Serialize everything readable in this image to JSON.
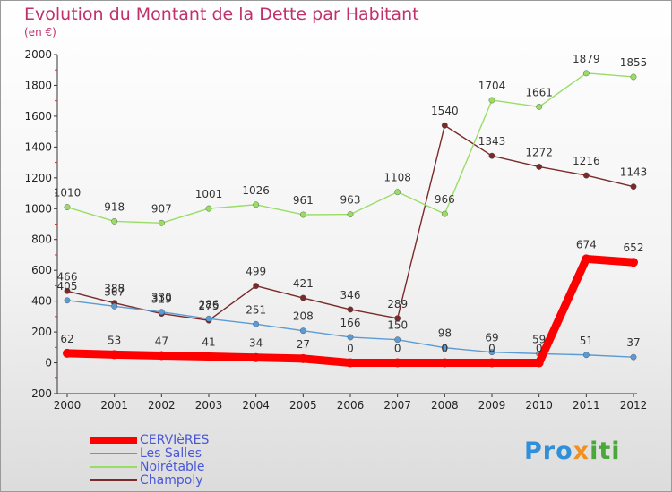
{
  "chart_data": {
    "type": "line",
    "title": "Evolution du Montant de la Dette par Habitant",
    "subtitle": "(en €)",
    "x": [
      "2000",
      "2001",
      "2002",
      "2003",
      "2004",
      "2005",
      "2006",
      "2007",
      "2008",
      "2009",
      "2010",
      "2011",
      "2012"
    ],
    "ylim": [
      -200,
      2000
    ],
    "yticks": [
      -200,
      0,
      200,
      400,
      600,
      800,
      1000,
      1200,
      1400,
      1600,
      1800,
      2000
    ],
    "grid": false,
    "legend_position": "bottom-left",
    "series": [
      {
        "name": "CERVIèRES",
        "color": "#ff0000",
        "values": [
          62,
          53,
          47,
          41,
          34,
          27,
          0,
          0,
          0,
          0,
          0,
          674,
          652
        ]
      },
      {
        "name": "Les Salles",
        "color": "#5b9bd5",
        "values": [
          405,
          367,
          330,
          286,
          251,
          208,
          166,
          150,
          98,
          69,
          59,
          51,
          37
        ]
      },
      {
        "name": "Noirétable",
        "color": "#99dd66",
        "values": [
          1010,
          918,
          907,
          1001,
          1026,
          961,
          963,
          1108,
          966,
          1704,
          1661,
          1879,
          1855
        ]
      },
      {
        "name": "Champoly",
        "color": "#7a2a2a",
        "values": [
          466,
          388,
          319,
          275,
          499,
          421,
          346,
          289,
          1540,
          1343,
          1272,
          1216,
          1143
        ]
      }
    ]
  },
  "brand": {
    "part1": "Pro",
    "part2": "x",
    "part3": "iti"
  }
}
